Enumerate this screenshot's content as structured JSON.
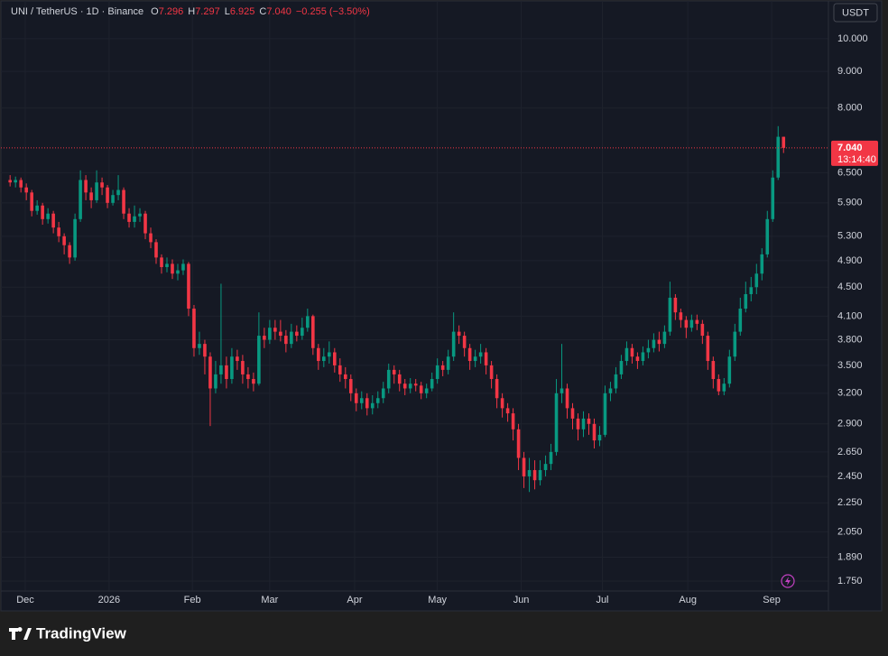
{
  "header": {
    "symbol": "UNI / TetherUS · 1D · Binance",
    "fields": [
      {
        "label": "O",
        "value": "7.296"
      },
      {
        "label": "H",
        "value": "7.297"
      },
      {
        "label": "L",
        "value": "6.925"
      },
      {
        "label": "C",
        "value": "7.040"
      }
    ],
    "change": "−0.255 (−3.50%)"
  },
  "currency": "USDT",
  "brand": "TradingView",
  "chart_data": {
    "type": "candlestick",
    "log_scale": true,
    "grid": true,
    "up_color": "#089981",
    "down_color": "#f23645",
    "xlim": [
      -1.7,
      151.3
    ],
    "ylim": [
      1.695,
      11.29
    ],
    "xticks": [
      {
        "value": 2.8,
        "label": "Dec"
      },
      {
        "value": 18.3,
        "label": "2026"
      },
      {
        "value": 33.7,
        "label": "Feb"
      },
      {
        "value": 48,
        "label": "Mar"
      },
      {
        "value": 63.7,
        "label": "Apr"
      },
      {
        "value": 79,
        "label": "May"
      },
      {
        "value": 94.5,
        "label": "Jun"
      },
      {
        "value": 109.5,
        "label": "Jul"
      },
      {
        "value": 125.3,
        "label": "Aug"
      },
      {
        "value": 140.8,
        "label": "Sep"
      }
    ],
    "yticks": [
      {
        "value": 10,
        "label": "10.000"
      },
      {
        "value": 9,
        "label": "9.000"
      },
      {
        "value": 8,
        "label": "8.000"
      },
      {
        "value": 6.5,
        "label": "6.500"
      },
      {
        "value": 5.9,
        "label": "5.900"
      },
      {
        "value": 5.3,
        "label": "5.300"
      },
      {
        "value": 4.9,
        "label": "4.900"
      },
      {
        "value": 4.5,
        "label": "4.500"
      },
      {
        "value": 4.1,
        "label": "4.100"
      },
      {
        "value": 3.8,
        "label": "3.800"
      },
      {
        "value": 3.5,
        "label": "3.500"
      },
      {
        "value": 3.2,
        "label": "3.200"
      },
      {
        "value": 2.9,
        "label": "2.900"
      },
      {
        "value": 2.65,
        "label": "2.650"
      },
      {
        "value": 2.45,
        "label": "2.450"
      },
      {
        "value": 2.25,
        "label": "2.250"
      },
      {
        "value": 2.05,
        "label": "2.050"
      },
      {
        "value": 1.89,
        "label": "1.890"
      },
      {
        "value": 1.75,
        "label": "1.750"
      }
    ],
    "last_price": {
      "value": 7.04,
      "label": "7.040",
      "countdown": "13:14:40"
    },
    "open": [
      6.35,
      6.3,
      6.35,
      6.2,
      6.1,
      5.75,
      5.85,
      5.6,
      5.7,
      5.45,
      5.3,
      5.15,
      4.95,
      5.6,
      6.35,
      6.1,
      5.95,
      6.3,
      6.2,
      5.9,
      6.05,
      6.15,
      5.7,
      5.55,
      5.65,
      5.7,
      5.35,
      5.2,
      4.95,
      4.8,
      4.85,
      4.7,
      4.75,
      4.85,
      4.2,
      3.7,
      3.75,
      3.6,
      3.25,
      3.4,
      3.5,
      3.35,
      3.6,
      3.55,
      3.4,
      3.35,
      3.3,
      3.85,
      3.8,
      3.95,
      3.9,
      3.85,
      3.75,
      3.9,
      3.85,
      3.95,
      4.1,
      3.7,
      3.55,
      3.6,
      3.65,
      3.5,
      3.4,
      3.35,
      3.2,
      3.1,
      3.15,
      3.05,
      3.1,
      3.15,
      3.25,
      3.45,
      3.4,
      3.3,
      3.25,
      3.3,
      3.28,
      3.2,
      3.25,
      3.35,
      3.5,
      3.45,
      3.6,
      3.9,
      3.85,
      3.7,
      3.55,
      3.6,
      3.65,
      3.5,
      3.35,
      3.15,
      3.05,
      3.0,
      2.85,
      2.6,
      2.45,
      2.5,
      2.42,
      2.5,
      2.55,
      2.65,
      3.2,
      3.25,
      3.05,
      2.95,
      2.85,
      2.95,
      2.9,
      2.75,
      2.8,
      3.2,
      3.25,
      3.4,
      3.55,
      3.7,
      3.6,
      3.55,
      3.65,
      3.7,
      3.8,
      3.75,
      3.9,
      4.35,
      4.15,
      4.05,
      3.95,
      4.05,
      4.0,
      3.85,
      3.55,
      3.35,
      3.22,
      3.3,
      3.6,
      3.9,
      4.2,
      4.4,
      4.5,
      4.7,
      5.0,
      5.6,
      6.4,
      7.296
    ],
    "high": [
      6.45,
      6.42,
      6.4,
      6.28,
      6.15,
      5.95,
      5.9,
      5.8,
      5.75,
      5.55,
      5.35,
      5.2,
      5.7,
      6.55,
      6.45,
      6.2,
      6.55,
      6.4,
      6.25,
      6.15,
      6.45,
      6.2,
      5.8,
      5.85,
      5.8,
      5.75,
      5.45,
      5.25,
      5.0,
      4.95,
      4.92,
      4.85,
      4.92,
      4.88,
      4.25,
      3.9,
      3.8,
      3.65,
      3.55,
      4.55,
      3.6,
      3.7,
      3.68,
      3.62,
      3.48,
      3.42,
      4.15,
      3.95,
      4.05,
      4.05,
      4.05,
      3.92,
      4.0,
      3.98,
      4.08,
      4.2,
      4.12,
      3.75,
      3.7,
      3.78,
      3.7,
      3.58,
      3.48,
      3.4,
      3.25,
      3.22,
      3.2,
      3.18,
      3.22,
      3.32,
      3.52,
      3.5,
      3.45,
      3.35,
      3.36,
      3.35,
      3.32,
      3.3,
      3.42,
      3.58,
      3.55,
      3.68,
      4.15,
      3.98,
      3.9,
      3.75,
      3.68,
      3.75,
      3.7,
      3.55,
      3.4,
      3.2,
      3.1,
      3.05,
      2.9,
      2.65,
      2.6,
      2.58,
      2.58,
      2.62,
      2.72,
      3.35,
      3.75,
      3.3,
      3.1,
      3.0,
      3.02,
      3.0,
      2.95,
      2.88,
      3.28,
      3.32,
      3.48,
      3.62,
      3.78,
      3.75,
      3.65,
      3.72,
      3.8,
      3.88,
      3.9,
      3.98,
      4.58,
      4.4,
      4.2,
      4.1,
      4.12,
      4.12,
      4.05,
      3.9,
      3.6,
      3.4,
      3.36,
      3.68,
      4.0,
      4.35,
      4.58,
      4.65,
      4.85,
      5.1,
      5.75,
      6.55,
      7.55,
      7.297
    ],
    "low": [
      6.22,
      6.2,
      6.1,
      5.95,
      5.65,
      5.68,
      5.5,
      5.52,
      5.35,
      5.2,
      5.0,
      4.85,
      4.9,
      5.55,
      5.95,
      5.8,
      5.9,
      6.05,
      5.8,
      5.85,
      5.95,
      5.6,
      5.45,
      5.45,
      5.55,
      5.25,
      5.1,
      4.85,
      4.7,
      4.72,
      4.62,
      4.6,
      4.68,
      4.1,
      3.6,
      3.62,
      3.4,
      2.88,
      3.2,
      3.3,
      3.25,
      3.3,
      3.45,
      3.3,
      3.25,
      3.22,
      3.28,
      3.7,
      3.75,
      3.8,
      3.78,
      3.65,
      3.7,
      3.78,
      3.8,
      3.9,
      3.62,
      3.45,
      3.48,
      3.52,
      3.42,
      3.32,
      3.25,
      3.12,
      3.02,
      3.04,
      2.98,
      2.99,
      3.05,
      3.1,
      3.2,
      3.3,
      3.22,
      3.18,
      3.2,
      3.22,
      3.14,
      3.15,
      3.22,
      3.3,
      3.38,
      3.4,
      3.55,
      3.75,
      3.6,
      3.45,
      3.48,
      3.52,
      3.4,
      3.25,
      3.05,
      2.96,
      2.92,
      2.75,
      2.5,
      2.36,
      2.33,
      2.35,
      2.38,
      2.45,
      2.5,
      2.62,
      3.1,
      2.95,
      2.85,
      2.75,
      2.78,
      2.8,
      2.68,
      2.7,
      2.78,
      3.12,
      3.2,
      3.35,
      3.5,
      3.52,
      3.46,
      3.5,
      3.58,
      3.65,
      3.66,
      3.7,
      3.85,
      4.05,
      3.95,
      3.82,
      3.9,
      3.92,
      3.75,
      3.45,
      3.25,
      3.18,
      3.18,
      3.26,
      3.55,
      3.85,
      4.15,
      4.3,
      4.4,
      4.6,
      4.95,
      5.55,
      6.35,
      6.925
    ],
    "close": [
      6.3,
      6.35,
      6.2,
      6.1,
      5.75,
      5.85,
      5.6,
      5.7,
      5.45,
      5.3,
      5.15,
      4.95,
      5.6,
      6.35,
      6.1,
      5.95,
      6.3,
      6.2,
      5.9,
      6.05,
      6.15,
      5.7,
      5.55,
      5.65,
      5.7,
      5.35,
      5.2,
      4.95,
      4.8,
      4.85,
      4.7,
      4.75,
      4.85,
      4.2,
      3.7,
      3.75,
      3.6,
      3.25,
      3.4,
      3.5,
      3.35,
      3.6,
      3.55,
      3.4,
      3.35,
      3.3,
      3.85,
      3.8,
      3.95,
      3.9,
      3.85,
      3.75,
      3.9,
      3.85,
      3.95,
      4.1,
      3.7,
      3.55,
      3.6,
      3.65,
      3.5,
      3.4,
      3.35,
      3.2,
      3.1,
      3.15,
      3.05,
      3.1,
      3.15,
      3.25,
      3.45,
      3.4,
      3.3,
      3.25,
      3.3,
      3.28,
      3.2,
      3.25,
      3.35,
      3.5,
      3.45,
      3.6,
      3.9,
      3.85,
      3.7,
      3.55,
      3.6,
      3.65,
      3.5,
      3.35,
      3.15,
      3.05,
      3.0,
      2.85,
      2.6,
      2.45,
      2.5,
      2.42,
      2.5,
      2.55,
      2.65,
      3.2,
      3.25,
      3.05,
      2.95,
      2.85,
      2.95,
      2.9,
      2.75,
      2.8,
      3.2,
      3.25,
      3.4,
      3.55,
      3.7,
      3.6,
      3.55,
      3.65,
      3.7,
      3.8,
      3.75,
      3.9,
      4.35,
      4.15,
      4.05,
      3.95,
      4.05,
      4.0,
      3.85,
      3.55,
      3.35,
      3.22,
      3.3,
      3.6,
      3.9,
      4.2,
      4.4,
      4.5,
      4.7,
      5.0,
      5.6,
      6.4,
      7.296,
      7.04
    ]
  }
}
